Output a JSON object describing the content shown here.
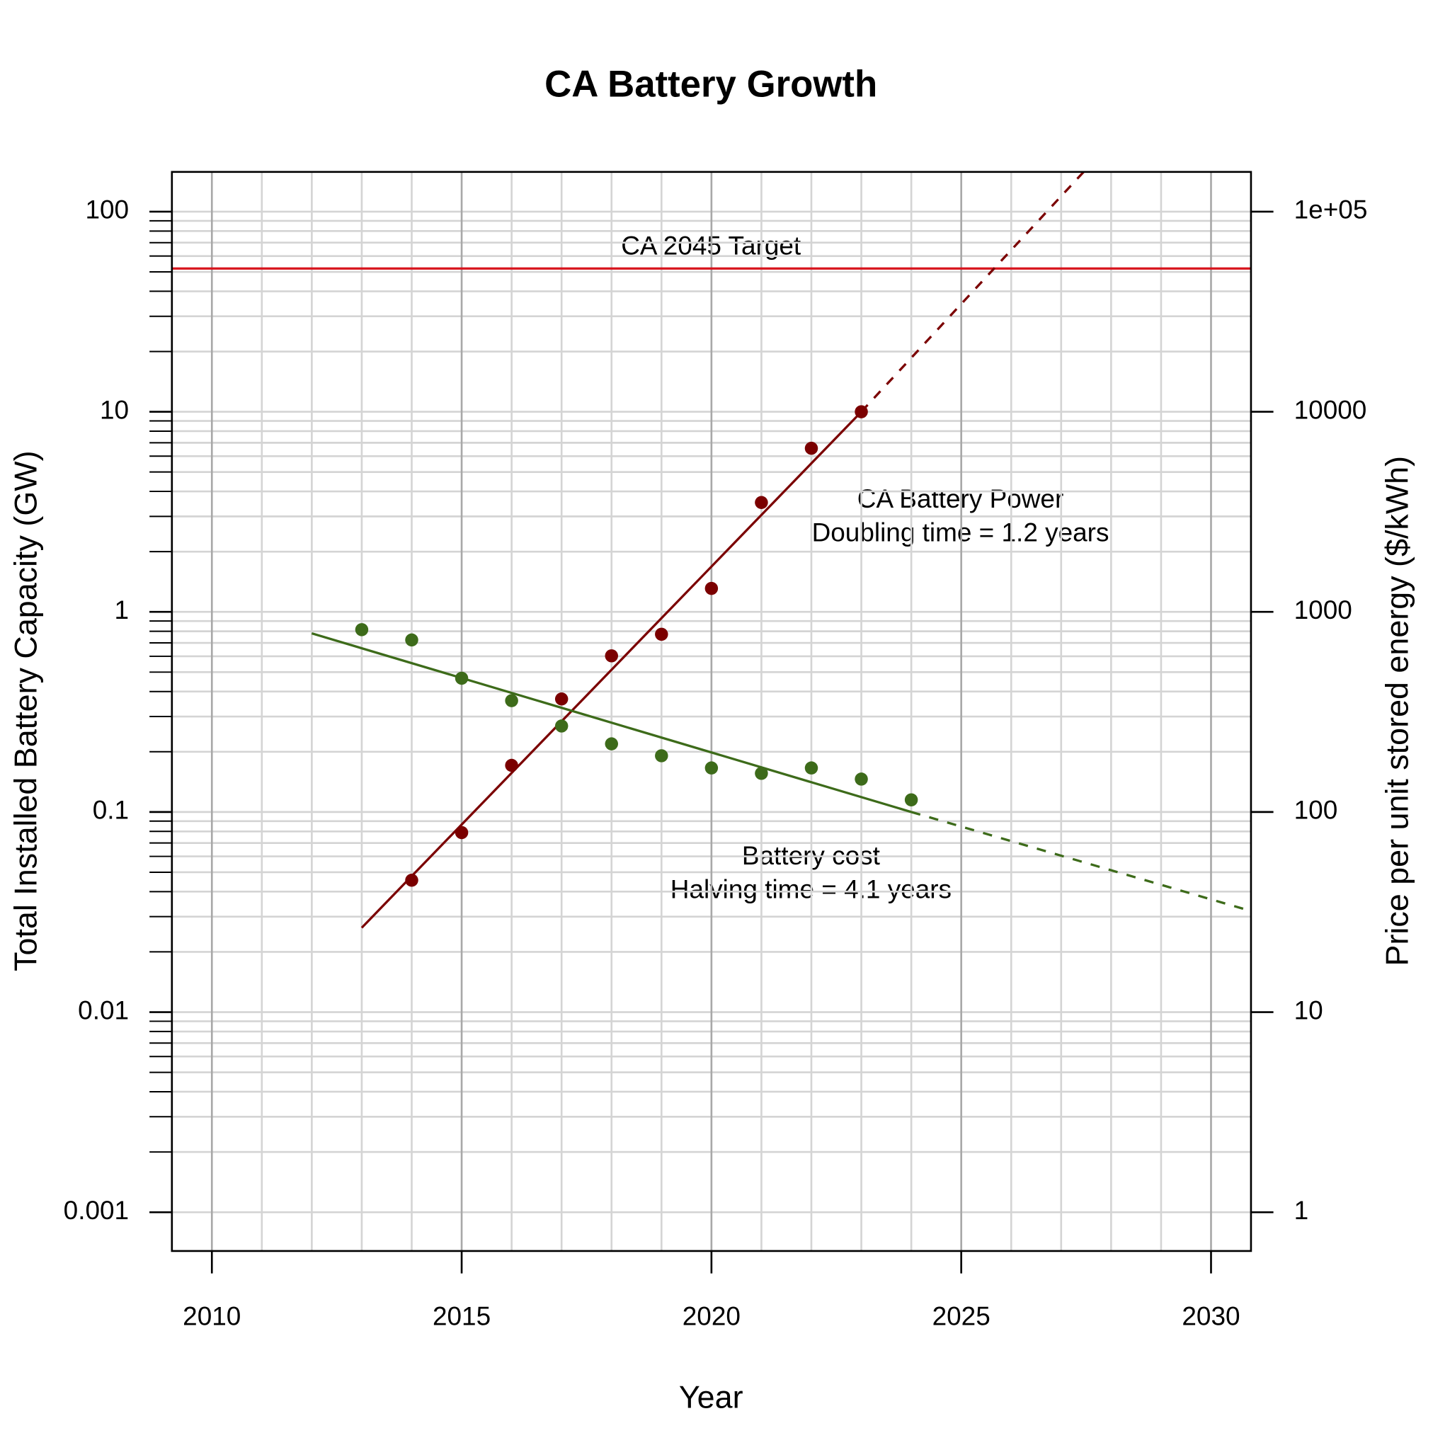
{
  "chart_data": {
    "type": "scatter",
    "title": "CA Battery Growth",
    "x_label": "Year",
    "y_label": "Total Installed Battery Capacity (GW)",
    "y2_label": "Price per unit stored energy ($/kWh)",
    "log_y": true,
    "grid": true,
    "xlim": [
      2009.2,
      2030.8
    ],
    "xticks": [
      2010,
      2015,
      2020,
      2025,
      2030
    ],
    "xgrid": [
      2010,
      2011,
      2012,
      2013,
      2014,
      2015,
      2016,
      2017,
      2018,
      2019,
      2020,
      2021,
      2022,
      2023,
      2024,
      2025,
      2026,
      2027,
      2028,
      2029,
      2030
    ],
    "ylim": [
      0.00064,
      158
    ],
    "yticks": [
      0.001,
      0.01,
      0.1,
      1,
      10,
      100
    ],
    "ygrid": [
      0.001,
      0.002,
      0.003,
      0.004,
      0.005,
      0.006,
      0.007,
      0.008,
      0.009,
      0.01,
      0.02,
      0.03,
      0.04,
      0.05,
      0.06,
      0.07,
      0.08,
      0.09,
      0.1,
      0.2,
      0.3,
      0.4,
      0.5,
      0.6,
      0.7,
      0.8,
      0.9,
      1,
      2,
      3,
      4,
      5,
      6,
      7,
      8,
      9,
      10,
      20,
      30,
      40,
      50,
      60,
      70,
      80,
      90,
      100
    ],
    "y2lim": [
      0.64,
      158000
    ],
    "y2ticks": [
      1,
      10,
      100,
      1000,
      10000,
      {
        "value": 100000,
        "label": "1e+05"
      }
    ],
    "target": {
      "value": 52,
      "label": "CA 2045 Target",
      "color": "#d7141c"
    },
    "series": [
      {
        "name": "CA Battery Power",
        "note": "Doubling time = 1.2 years",
        "color": "#7b0000",
        "x": [
          2014,
          2015,
          2016,
          2017,
          2018,
          2019,
          2020,
          2021,
          2022,
          2023
        ],
        "values": [
          0.0456,
          0.0789,
          0.171,
          0.367,
          0.603,
          0.773,
          1.31,
          3.52,
          6.57,
          10
        ]
      },
      {
        "name": "Battery cost",
        "note": "Halving time = 4.1 years",
        "color": "#3d6b1a",
        "axis": "y2",
        "x": [
          2013,
          2014,
          2015,
          2016,
          2017,
          2018,
          2019,
          2020,
          2021,
          2022,
          2023,
          2024
        ],
        "values": [
          815,
          724,
          466,
          360,
          269,
          219,
          191,
          166,
          156,
          166,
          146,
          115
        ]
      }
    ],
    "trends": [
      {
        "color": "#7b0000",
        "dashed": false,
        "x": [
          2013,
          2023
        ],
        "values": [
          0.0264,
          10
        ]
      },
      {
        "color": "#7b0000",
        "dashed": true,
        "x": [
          2023,
          2027.45
        ],
        "values": [
          10,
          158
        ]
      },
      {
        "color": "#3d6b1a",
        "dashed": false,
        "axis": "y2",
        "x": [
          2012,
          2024
        ],
        "values": [
          781,
          100
        ]
      },
      {
        "color": "#3d6b1a",
        "dashed": true,
        "axis": "y2",
        "x": [
          2024,
          2030.8
        ],
        "values": [
          100,
          32
        ]
      }
    ]
  }
}
